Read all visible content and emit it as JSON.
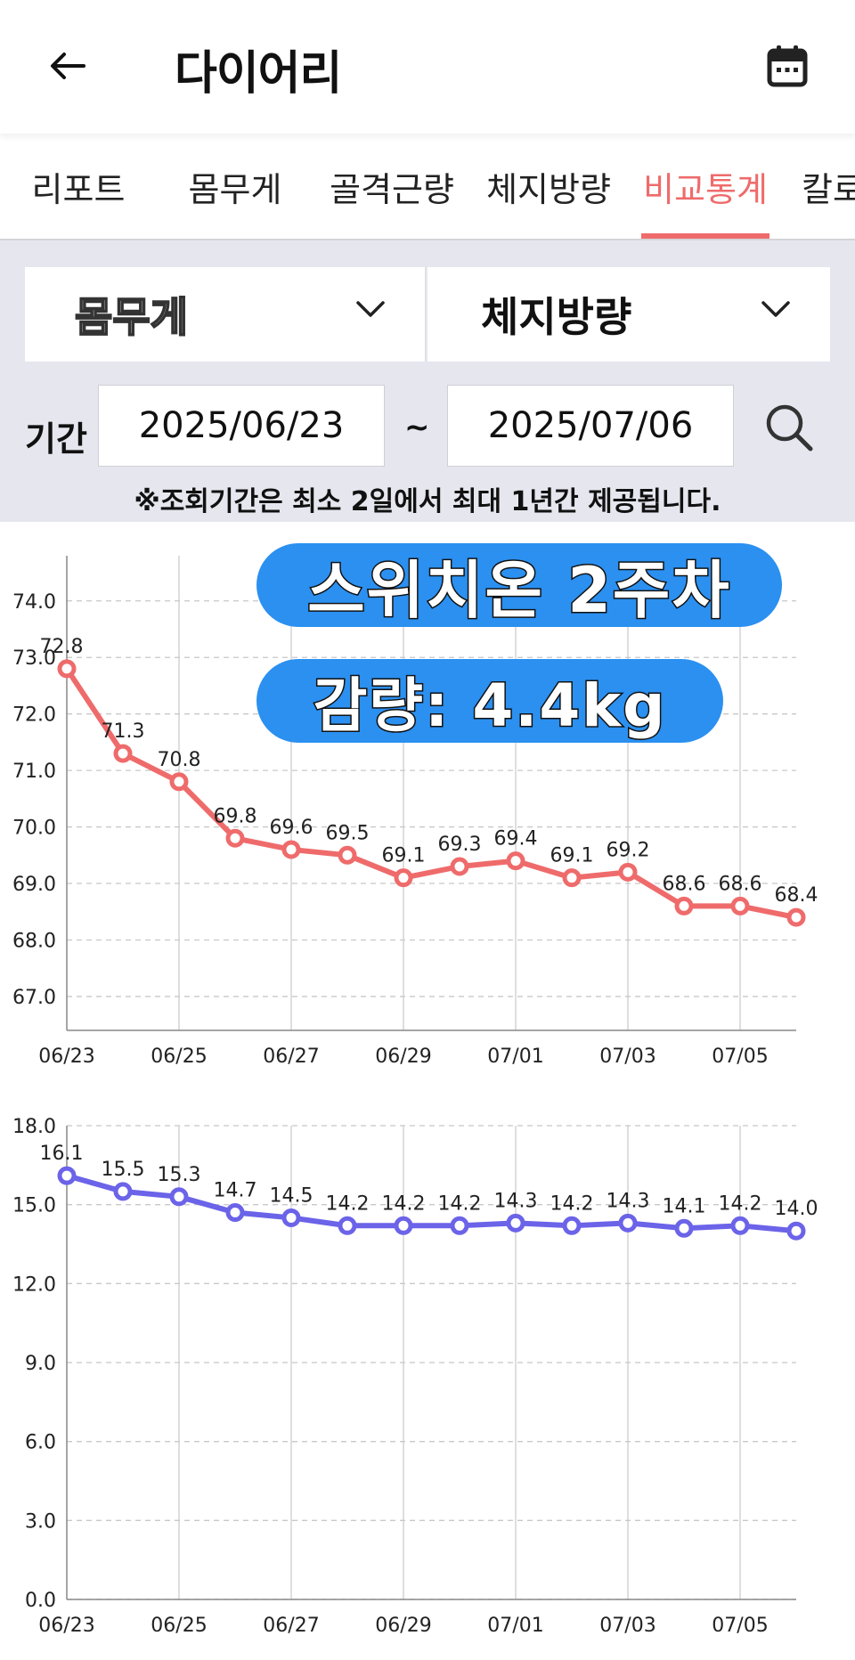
{
  "header": {
    "title": "다이어리",
    "back_icon": "back-arrow-icon",
    "calendar_icon": "calendar-icon"
  },
  "tabs": [
    {
      "label": "리포트",
      "active": false
    },
    {
      "label": "몸무게",
      "active": false
    },
    {
      "label": "골격근량",
      "active": false
    },
    {
      "label": "체지방량",
      "active": false
    },
    {
      "label": "비교통계",
      "active": true
    },
    {
      "label": "칼로",
      "active": false
    }
  ],
  "filter": {
    "select_left": "몸무게",
    "select_right": "체지방량",
    "period_label": "기간",
    "start_date": "2025/06/23",
    "separator": "~",
    "end_date": "2025/07/06",
    "notice": "※조회기간은 최소 2일에서 최대 1년간 제공됩니다."
  },
  "overlay": {
    "line1": "스위치온  2주차",
    "line2": "감량: 4.4kg"
  },
  "colors": {
    "accent": "#ef6b6b",
    "weight_line": "#ef6b6b",
    "fat_line": "#6b63e8",
    "filter_bg": "#e6e6ef",
    "overlay_bg": "#2b90f0"
  },
  "chart_data": [
    {
      "type": "line",
      "x": [
        "06/23",
        "06/24",
        "06/25",
        "06/26",
        "06/27",
        "06/28",
        "06/29",
        "06/30",
        "07/01",
        "07/02",
        "07/03",
        "07/04",
        "07/05",
        "07/06"
      ],
      "x_tick_labels": [
        "06/23",
        "06/25",
        "06/27",
        "06/29",
        "07/01",
        "07/03",
        "07/05"
      ],
      "series": [
        {
          "values": [
            72.8,
            71.3,
            70.8,
            69.8,
            69.6,
            69.5,
            69.1,
            69.3,
            69.4,
            69.1,
            69.2,
            68.6,
            68.6,
            68.4
          ]
        }
      ],
      "y_ticks": [
        "67.0",
        "68.0",
        "69.0",
        "70.0",
        "71.0",
        "72.0",
        "73.0",
        "74.0"
      ],
      "ylim": [
        66.4,
        74.8
      ],
      "grid": true
    },
    {
      "type": "line",
      "x": [
        "06/23",
        "06/24",
        "06/25",
        "06/26",
        "06/27",
        "06/28",
        "06/29",
        "06/30",
        "07/01",
        "07/02",
        "07/03",
        "07/04",
        "07/05",
        "07/06"
      ],
      "x_tick_labels": [
        "06/23",
        "06/25",
        "06/27",
        "06/29",
        "07/01",
        "07/03",
        "07/05"
      ],
      "series": [
        {
          "values": [
            16.1,
            15.5,
            15.3,
            14.7,
            14.5,
            14.2,
            14.2,
            14.2,
            14.3,
            14.2,
            14.3,
            14.1,
            14.2,
            14.0
          ]
        }
      ],
      "y_ticks": [
        "0.0",
        "3.0",
        "6.0",
        "9.0",
        "12.0",
        "15.0",
        "18.0"
      ],
      "ylim": [
        0,
        18
      ],
      "grid": true
    }
  ]
}
